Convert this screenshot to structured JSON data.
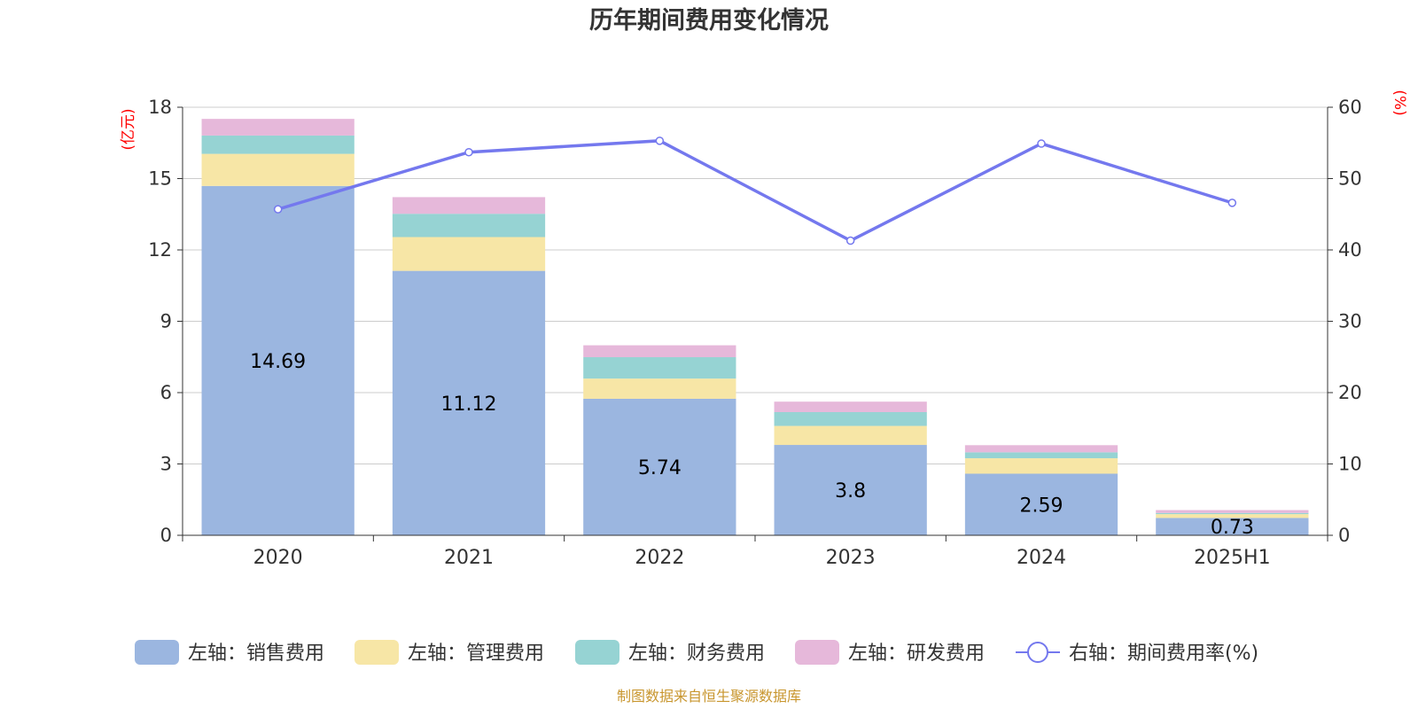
{
  "chart_data": {
    "type": "bar",
    "title": "历年期间费用变化情况",
    "categories": [
      "2020",
      "2021",
      "2022",
      "2023",
      "2024",
      "2025H1"
    ],
    "left_axis": {
      "unit": "(亿元)",
      "ylim": [
        0,
        18
      ],
      "ticks": [
        "0",
        "3",
        "6",
        "9",
        "12",
        "15",
        "18"
      ]
    },
    "right_axis": {
      "unit": "(%)",
      "ylim": [
        0,
        60
      ],
      "ticks": [
        "0",
        "10",
        "20",
        "30",
        "40",
        "50",
        "60"
      ]
    },
    "series": [
      {
        "name": "左轴：销售费用",
        "type": "bar",
        "axis": "left",
        "color": "#9bb6e0",
        "values": [
          14.69,
          11.12,
          5.74,
          3.8,
          2.59,
          0.73
        ],
        "labels": [
          "14.69",
          "11.12",
          "5.74",
          "3.8",
          "2.59",
          "0.73"
        ]
      },
      {
        "name": "左轴：管理费用",
        "type": "bar",
        "axis": "left",
        "color": "#f7e6a6",
        "values": [
          1.35,
          1.42,
          0.85,
          0.8,
          0.65,
          0.16
        ]
      },
      {
        "name": "左轴：财务费用",
        "type": "bar",
        "axis": "left",
        "color": "#96d3d3",
        "values": [
          0.77,
          0.98,
          0.9,
          0.58,
          0.25,
          0.05
        ]
      },
      {
        "name": "左轴：研发费用",
        "type": "bar",
        "axis": "left",
        "color": "#e6b8da",
        "values": [
          0.7,
          0.7,
          0.5,
          0.44,
          0.3,
          0.12
        ]
      },
      {
        "name": "右轴：期间费用率(%)",
        "type": "line",
        "axis": "right",
        "color": "#7478ee",
        "values": [
          45.7,
          53.7,
          55.3,
          41.3,
          54.9,
          46.6
        ]
      }
    ],
    "grid": true,
    "legend_position": "bottom"
  },
  "source_text": "制图数据来自恒生聚源数据库"
}
